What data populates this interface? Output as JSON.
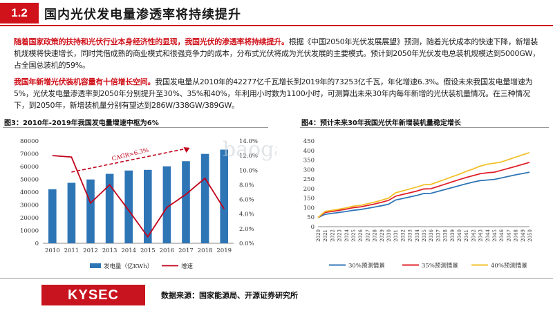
{
  "header": {
    "section_number": "1.2",
    "title": "国内光伏发电量渗透率将持续提升"
  },
  "paragraph1": {
    "highlight": "随着国家政策的扶持和光伏行业本身经济性的显现，我国光伏的渗透率将持续提升。",
    "body": "根据《中国2050年光伏发展展望》预测，随着光伏成本的快速下降，新增装机规模将快速增长，同时凭借成熟的商业模式和很强竞争力的成本，分布式光伏将成为光伏发展的主要模式。预计到2050年光伏发电总装机规模达到5000GW，占全国总装机的59%。"
  },
  "paragraph2": {
    "highlight": "我国年新增光伏装机容量有十倍增长空间。",
    "body": "我国发电量从2010年的42277亿千瓦增长到2019年的73253亿千瓦，年化增速6.3%。假设未来我国发电量增速为5%，光伏发电量渗透率到2050年分别提升至30%、35%和40%，年利用小时数为1100小时，可测算出未来30年内每年新增的光伏装机量情况。在三种情况下，到2050年，新增装机量分别有望达到286W/338GW/389GW。"
  },
  "figure3": {
    "title": "图3：2010年-2019年我国发电量增速中枢为6%"
  },
  "figure4": {
    "title": "图4：预计未来30年我国光伏年新增装机量稳定增长"
  },
  "watermark": "baogao8.com",
  "footer": {
    "logo": "KYSEC",
    "source": "数据来源：国家能源局、开源证券研究所"
  },
  "colors": {
    "accent_red": "#d0121b",
    "bar_blue": "#2e75b6",
    "line_red": "#c0001a",
    "series_blue": "#2e75b6",
    "series_red": "#e0202a",
    "series_yellow": "#f2c029"
  },
  "chart_data": [
    {
      "type": "bar+line",
      "categories": [
        "2010",
        "2011",
        "2012",
        "2013",
        "2014",
        "2015",
        "2016",
        "2017",
        "2018",
        "2019"
      ],
      "series": [
        {
          "name": "发电量（亿KWh）",
          "type": "bar",
          "axis": "left",
          "values": [
            42277,
            47300,
            49900,
            54300,
            56900,
            57400,
            60200,
            64200,
            69900,
            73253
          ]
        },
        {
          "name": "增速",
          "type": "line",
          "axis": "right",
          "values": [
            12.0,
            11.8,
            5.5,
            8.0,
            4.5,
            0.9,
            4.9,
            6.7,
            8.9,
            4.7
          ]
        }
      ],
      "y_left": {
        "min": 0,
        "max": 80000,
        "ticks": [
          "0",
          "10000",
          "20000",
          "30000",
          "40000",
          "50000",
          "60000",
          "70000",
          "80000"
        ]
      },
      "y_right": {
        "min": 0,
        "max": 14,
        "ticks": [
          "0.0%",
          "2.0%",
          "4.0%",
          "6.0%",
          "8.0%",
          "10.0%",
          "12.0%",
          "14.0%"
        ]
      },
      "annotation": "CAGR=6.3%",
      "legend": "bottom"
    },
    {
      "type": "line",
      "x": [
        "2020",
        "2021",
        "2022",
        "2023",
        "2024",
        "2025",
        "2026",
        "2027",
        "2028",
        "2029",
        "2030",
        "2031",
        "2032",
        "2033",
        "2034",
        "2035",
        "2036",
        "2037",
        "2038",
        "2039",
        "2040",
        "2041",
        "2042",
        "2043",
        "2044",
        "2045",
        "2046",
        "2047",
        "2048",
        "2049",
        "2050"
      ],
      "series": [
        {
          "name": "30%预测情景",
          "values": [
            48,
            65,
            70,
            75,
            80,
            86,
            90,
            96,
            103,
            110,
            118,
            140,
            148,
            156,
            164,
            174,
            175,
            185,
            195,
            205,
            215,
            225,
            234,
            242,
            245,
            248,
            256,
            264,
            272,
            279,
            286
          ]
        },
        {
          "name": "35%预测情景",
          "values": [
            48,
            75,
            80,
            86,
            92,
            100,
            104,
            111,
            119,
            128,
            138,
            160,
            169,
            178,
            187,
            198,
            199,
            211,
            223,
            235,
            247,
            258,
            268,
            278,
            283,
            286,
            296,
            306,
            316,
            327,
            338
          ]
        },
        {
          "name": "40%预测情景",
          "values": [
            48,
            80,
            86,
            92,
            99,
            108,
            112,
            120,
            129,
            139,
            150,
            178,
            188,
            198,
            208,
            220,
            222,
            235,
            248,
            262,
            275,
            290,
            303,
            318,
            328,
            333,
            340,
            352,
            365,
            377,
            389
          ]
        }
      ],
      "ylim": [
        0,
        450
      ],
      "y_ticks": [
        "0",
        "50",
        "100",
        "150",
        "200",
        "250",
        "300",
        "350",
        "400",
        "450"
      ],
      "legend": "bottom"
    }
  ]
}
